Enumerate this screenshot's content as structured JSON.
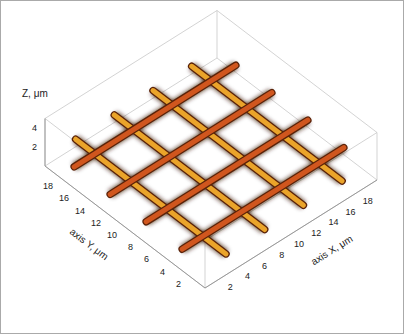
{
  "chart_data": {
    "type": "surface3d",
    "x_label": "axis X, μm",
    "y_label": "axis Y, μm",
    "z_label": "Z, μm",
    "xlim": [
      0,
      20
    ],
    "ylim": [
      0,
      20
    ],
    "zlim": [
      0,
      5
    ],
    "xticks": [
      2,
      4,
      6,
      8,
      10,
      12,
      14,
      16,
      18
    ],
    "yticks": [
      2,
      4,
      6,
      8,
      10,
      12,
      14,
      16,
      18
    ],
    "zticks": [
      2,
      4
    ],
    "fibers_along_x": [
      3.5,
      8,
      12.5,
      17
    ],
    "fibers_along_y": [
      3,
      7.5,
      12,
      16.5
    ],
    "fiber_height": 1.5
  }
}
